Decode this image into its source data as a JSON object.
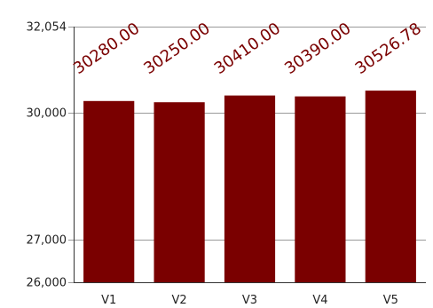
{
  "chart_data": {
    "type": "bar",
    "categories": [
      "V1",
      "V2",
      "V3",
      "V4",
      "V5"
    ],
    "values": [
      30280.0,
      30250.0,
      30410.0,
      30390.0,
      30526.78
    ],
    "data_labels": [
      "30280.00",
      "30250.00",
      "30410.00",
      "30390.00",
      "30526.78"
    ],
    "title": "",
    "xlabel": "",
    "ylabel": "",
    "ylim": [
      26000,
      32054
    ],
    "y_scale": "broken",
    "y_break": {
      "from": 27000,
      "to": 30000
    },
    "yticks": [
      26000,
      27000,
      30000,
      32054
    ],
    "ytick_labels": [
      "26,000",
      "27,000",
      "30,000",
      "32,054"
    ],
    "grid": true,
    "legend": "none",
    "bar_color": "#7a0000",
    "label_color": "#7a0000"
  }
}
